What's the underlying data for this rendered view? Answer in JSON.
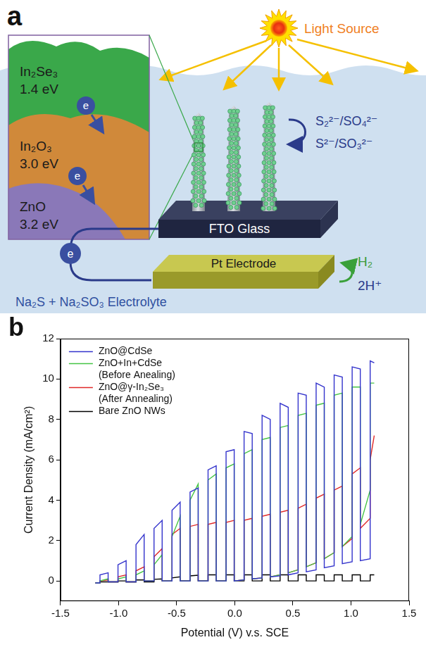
{
  "diagram": {
    "panel_label": "a",
    "light_source": "Light Source",
    "layers": [
      {
        "material": "In₂Se₃",
        "band_gap": "1.4 eV"
      },
      {
        "material": "In₂O₃",
        "band_gap": "3.0 eV"
      },
      {
        "material": "ZnO",
        "band_gap": "3.2 eV"
      }
    ],
    "electron_label": "e",
    "anode_reactions": [
      "S₂²⁻/SO₄²⁻",
      "S²⁻/SO₃²⁻"
    ],
    "anode": "FTO Glass",
    "cathode": "Pt Electrode",
    "cathode_reactions": [
      "H₂",
      "2H⁺"
    ],
    "electrolyte": "Na₂S + Na₂SO₃ Electrolyte"
  },
  "chart_data": {
    "type": "line",
    "panel_label": "b",
    "x_label": "Potential (V) v.s. SCE",
    "y_label": "Current Density (mA/cm²)",
    "x": [
      -1.2,
      -1.16,
      -1.16,
      -1.09,
      -1.09,
      -1.005,
      -1.005,
      -0.935,
      -0.935,
      -0.85,
      -0.85,
      -0.78,
      -0.78,
      -0.695,
      -0.695,
      -0.625,
      -0.625,
      -0.54,
      -0.54,
      -0.47,
      -0.47,
      -0.385,
      -0.385,
      -0.315,
      -0.315,
      -0.23,
      -0.23,
      -0.16,
      -0.16,
      -0.075,
      -0.075,
      -0.005,
      -0.005,
      0.08,
      0.08,
      0.15,
      0.15,
      0.235,
      0.235,
      0.305,
      0.305,
      0.39,
      0.39,
      0.46,
      0.46,
      0.545,
      0.545,
      0.615,
      0.615,
      0.7,
      0.7,
      0.77,
      0.77,
      0.855,
      0.855,
      0.925,
      0.925,
      1.01,
      1.01,
      1.08,
      1.08,
      1.165,
      1.165,
      1.2
    ],
    "series": [
      {
        "name": "ZnO@CdSe",
        "color": "#3333cc",
        "values": [
          -0.1,
          -0.1,
          0.3,
          0.4,
          -0.05,
          -0.05,
          0.8,
          1.0,
          -0.05,
          -0.05,
          1.8,
          2.3,
          0,
          0,
          2.6,
          3.0,
          0,
          0,
          3.5,
          3.9,
          0,
          0,
          4.4,
          4.6,
          0,
          0,
          5.5,
          5.7,
          0,
          0,
          6.4,
          6.5,
          0,
          0.05,
          7.4,
          7.3,
          0.1,
          0.15,
          8.2,
          8.0,
          0.2,
          0.25,
          8.8,
          8.6,
          0.3,
          0.4,
          9.3,
          9.2,
          0.45,
          0.55,
          9.8,
          9.6,
          0.65,
          0.75,
          10.2,
          10.1,
          0.85,
          0.95,
          10.6,
          10.5,
          1.0,
          1.1,
          10.9,
          10.8
        ]
      },
      {
        "name": "ZnO+In+CdSe (Before Anealing)",
        "color": "#44c444",
        "values": [
          -0.1,
          -0.1,
          0,
          0.1,
          -0.05,
          -0.05,
          0.1,
          0.2,
          -0.05,
          -0.05,
          0.3,
          0.5,
          0,
          0,
          0.8,
          1.3,
          0,
          0,
          2.2,
          3.2,
          0,
          0,
          4.0,
          4.8,
          0,
          0,
          5.0,
          5.3,
          0,
          0,
          5.6,
          5.8,
          0,
          0.05,
          6.3,
          6.5,
          0.1,
          0.15,
          7.0,
          7.1,
          0.2,
          0.3,
          7.6,
          7.7,
          0.4,
          0.55,
          8.2,
          8.3,
          0.7,
          0.9,
          8.7,
          8.8,
          1.1,
          1.4,
          9.2,
          9.3,
          1.7,
          2.2,
          9.6,
          9.6,
          2.8,
          4.5,
          9.8,
          9.8
        ]
      },
      {
        "name": "ZnO@γ-In₂Se₃ (After Annealing)",
        "color": "#e02828",
        "values": [
          -0.1,
          -0.1,
          0,
          0.05,
          -0.05,
          -0.05,
          0.2,
          0.3,
          -0.05,
          -0.05,
          0.5,
          0.7,
          0,
          0,
          1.2,
          1.6,
          0,
          0,
          2.3,
          2.6,
          0,
          0,
          2.7,
          2.8,
          0,
          0,
          2.8,
          2.9,
          0,
          0,
          2.9,
          3.0,
          0,
          0.05,
          3.0,
          3.1,
          0.1,
          0.15,
          3.2,
          3.3,
          0.2,
          0.3,
          3.4,
          3.5,
          0.4,
          0.55,
          3.6,
          3.8,
          0.7,
          0.9,
          4.1,
          4.3,
          1.1,
          1.4,
          4.5,
          4.7,
          1.7,
          2.1,
          5.3,
          5.6,
          2.6,
          3.1,
          6.0,
          7.2
        ]
      },
      {
        "name": "Bare ZnO NWs",
        "color": "#000000",
        "values": [
          -0.1,
          -0.1,
          -0.05,
          -0.05,
          -0.05,
          -0.05,
          0,
          0,
          -0.05,
          -0.05,
          0.05,
          0.05,
          -0.05,
          -0.05,
          0.08,
          0.1,
          0,
          0,
          0.15,
          0.2,
          0,
          0,
          0.25,
          0.28,
          0,
          0,
          0.3,
          0.3,
          0,
          0,
          0.3,
          0.3,
          0,
          0,
          0.3,
          0.3,
          0,
          0,
          0.3,
          0.3,
          0,
          0,
          0.3,
          0.3,
          0,
          0,
          0.3,
          0.3,
          0,
          0,
          0.3,
          0.3,
          0,
          0,
          0.3,
          0.3,
          0,
          0,
          0.3,
          0.3,
          0,
          0,
          0.3,
          0.3
        ]
      }
    ],
    "xlim": [
      -1.5,
      1.5
    ],
    "xticks": [
      -1.5,
      {
        "value": -1,
        "label": "-1.0"
      },
      -0.5,
      {
        "value": 0,
        "label": "0.0"
      },
      0.5,
      {
        "value": 1,
        "label": "1.0"
      },
      1.5
    ],
    "ylim": [
      -1,
      12
    ],
    "yticks": [
      0,
      2,
      4,
      6,
      8,
      10,
      12
    ],
    "grid": false,
    "legend": "upper left"
  }
}
